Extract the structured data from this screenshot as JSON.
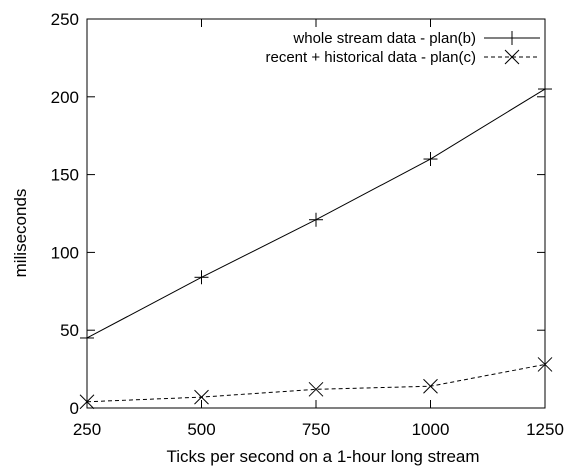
{
  "chart_data": {
    "type": "line",
    "title": "",
    "xlabel": "Ticks per second on a 1-hour long stream",
    "ylabel": "miliseconds",
    "xlim": [
      250,
      1250
    ],
    "ylim": [
      0,
      250
    ],
    "xticks": [
      250,
      500,
      750,
      1000,
      1250
    ],
    "yticks": [
      0,
      50,
      100,
      150,
      200,
      250
    ],
    "grid": false,
    "legend_position": "top-right",
    "series": [
      {
        "name": "whole stream data - plan(b)",
        "marker": "plus",
        "line_style": "solid",
        "x": [
          250,
          500,
          750,
          1000,
          1250
        ],
        "y": [
          45,
          84,
          121,
          160,
          205
        ]
      },
      {
        "name": "recent + historical data - plan(c)",
        "marker": "cross",
        "line_style": "dashed",
        "x": [
          250,
          500,
          750,
          1000,
          1250
        ],
        "y": [
          4,
          7,
          12,
          14,
          28
        ]
      }
    ]
  }
}
